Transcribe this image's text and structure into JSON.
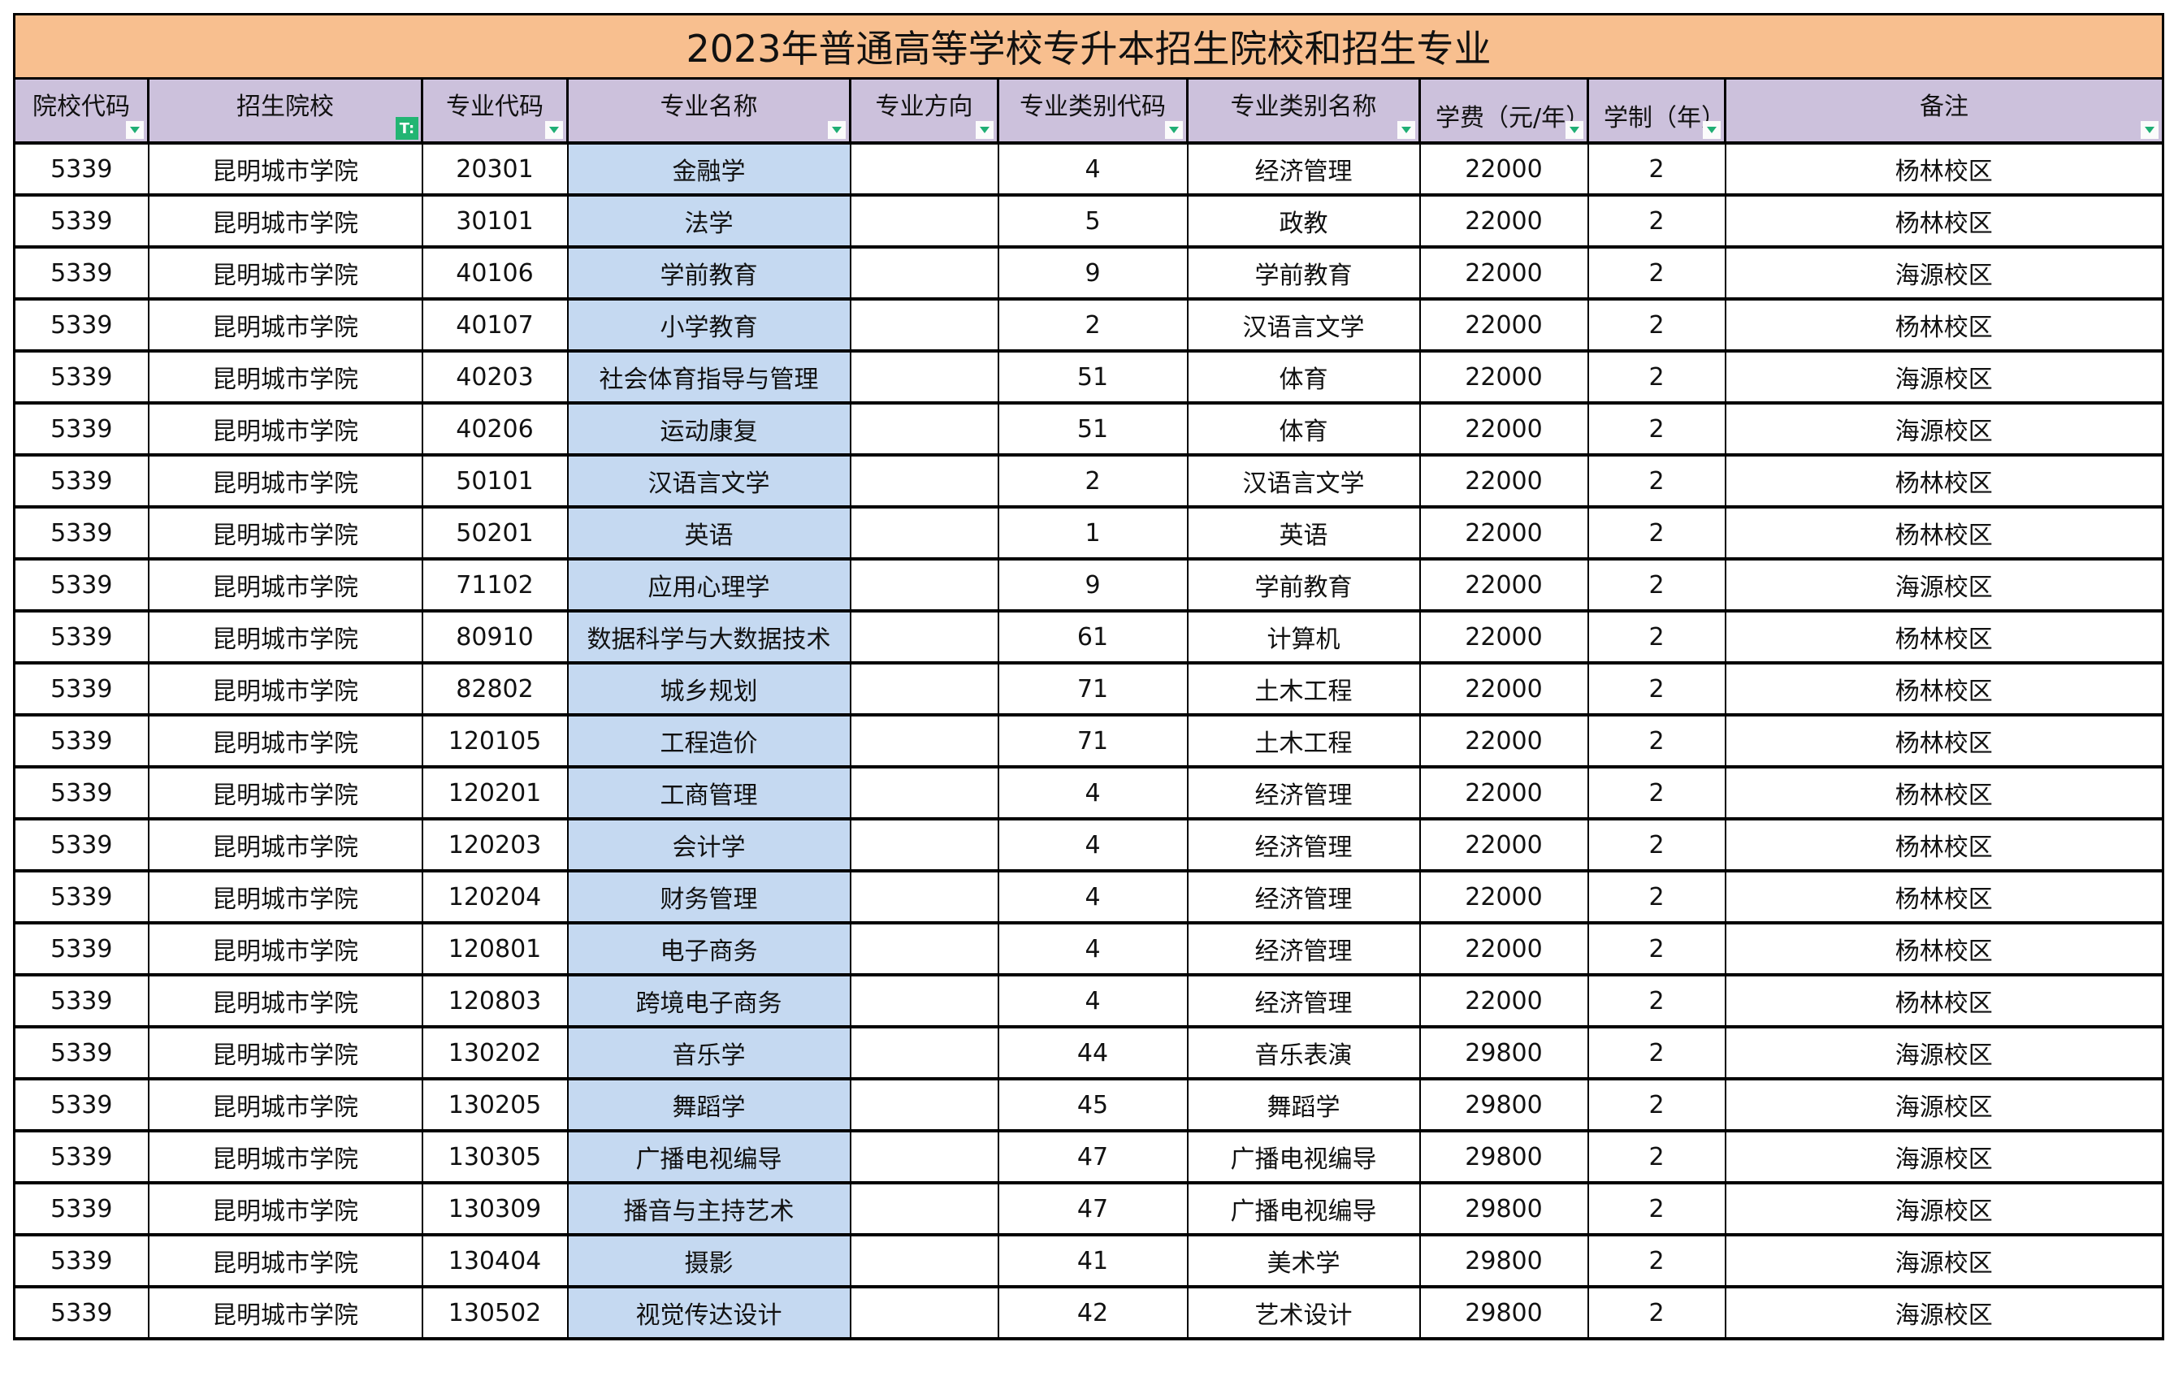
{
  "title": "2023年普通高等学校专升本招生院校和招生专业",
  "columns": [
    {
      "key": "school_code",
      "label": "院校代码",
      "filter": "dropdown"
    },
    {
      "key": "school_name",
      "label": "招生院校",
      "filter": "active"
    },
    {
      "key": "major_code",
      "label": "专业代码",
      "filter": "dropdown"
    },
    {
      "key": "major_name",
      "label": "专业名称",
      "filter": "dropdown"
    },
    {
      "key": "major_direction",
      "label": "专业方向",
      "filter": "dropdown"
    },
    {
      "key": "category_code",
      "label": "专业类别代码",
      "filter": "dropdown"
    },
    {
      "key": "category_name",
      "label": "专业类别名称",
      "filter": "dropdown"
    },
    {
      "key": "tuition",
      "label": "学费（元/年）",
      "filter": "dropdown"
    },
    {
      "key": "duration",
      "label": "学制（年）",
      "filter": "dropdown"
    },
    {
      "key": "note",
      "label": "备注",
      "filter": "dropdown"
    }
  ],
  "colors": {
    "title_bg": "#f8bf8f",
    "header_bg": "#ccc1dc",
    "major_col_bg": "#c5d9f1",
    "filter_active": "#22b573",
    "filter_arrow": "#1fae74"
  },
  "icons": {
    "filter_active": "T:",
    "filter_dropdown": "▼"
  },
  "rows": [
    {
      "school_code": "5339",
      "school_name": "昆明城市学院",
      "major_code": "20301",
      "major_name": "金融学",
      "major_direction": "",
      "category_code": "4",
      "category_name": "经济管理",
      "tuition": "22000",
      "duration": "2",
      "note": "杨林校区"
    },
    {
      "school_code": "5339",
      "school_name": "昆明城市学院",
      "major_code": "30101",
      "major_name": "法学",
      "major_direction": "",
      "category_code": "5",
      "category_name": "政教",
      "tuition": "22000",
      "duration": "2",
      "note": "杨林校区"
    },
    {
      "school_code": "5339",
      "school_name": "昆明城市学院",
      "major_code": "40106",
      "major_name": "学前教育",
      "major_direction": "",
      "category_code": "9",
      "category_name": "学前教育",
      "tuition": "22000",
      "duration": "2",
      "note": "海源校区"
    },
    {
      "school_code": "5339",
      "school_name": "昆明城市学院",
      "major_code": "40107",
      "major_name": "小学教育",
      "major_direction": "",
      "category_code": "2",
      "category_name": "汉语言文学",
      "tuition": "22000",
      "duration": "2",
      "note": "杨林校区"
    },
    {
      "school_code": "5339",
      "school_name": "昆明城市学院",
      "major_code": "40203",
      "major_name": "社会体育指导与管理",
      "major_direction": "",
      "category_code": "51",
      "category_name": "体育",
      "tuition": "22000",
      "duration": "2",
      "note": "海源校区"
    },
    {
      "school_code": "5339",
      "school_name": "昆明城市学院",
      "major_code": "40206",
      "major_name": "运动康复",
      "major_direction": "",
      "category_code": "51",
      "category_name": "体育",
      "tuition": "22000",
      "duration": "2",
      "note": "海源校区"
    },
    {
      "school_code": "5339",
      "school_name": "昆明城市学院",
      "major_code": "50101",
      "major_name": "汉语言文学",
      "major_direction": "",
      "category_code": "2",
      "category_name": "汉语言文学",
      "tuition": "22000",
      "duration": "2",
      "note": "杨林校区"
    },
    {
      "school_code": "5339",
      "school_name": "昆明城市学院",
      "major_code": "50201",
      "major_name": "英语",
      "major_direction": "",
      "category_code": "1",
      "category_name": "英语",
      "tuition": "22000",
      "duration": "2",
      "note": "杨林校区"
    },
    {
      "school_code": "5339",
      "school_name": "昆明城市学院",
      "major_code": "71102",
      "major_name": "应用心理学",
      "major_direction": "",
      "category_code": "9",
      "category_name": "学前教育",
      "tuition": "22000",
      "duration": "2",
      "note": "海源校区"
    },
    {
      "school_code": "5339",
      "school_name": "昆明城市学院",
      "major_code": "80910",
      "major_name": "数据科学与大数据技术",
      "major_direction": "",
      "category_code": "61",
      "category_name": "计算机",
      "tuition": "22000",
      "duration": "2",
      "note": "杨林校区"
    },
    {
      "school_code": "5339",
      "school_name": "昆明城市学院",
      "major_code": "82802",
      "major_name": "城乡规划",
      "major_direction": "",
      "category_code": "71",
      "category_name": "土木工程",
      "tuition": "22000",
      "duration": "2",
      "note": "杨林校区"
    },
    {
      "school_code": "5339",
      "school_name": "昆明城市学院",
      "major_code": "120105",
      "major_name": "工程造价",
      "major_direction": "",
      "category_code": "71",
      "category_name": "土木工程",
      "tuition": "22000",
      "duration": "2",
      "note": "杨林校区"
    },
    {
      "school_code": "5339",
      "school_name": "昆明城市学院",
      "major_code": "120201",
      "major_name": "工商管理",
      "major_direction": "",
      "category_code": "4",
      "category_name": "经济管理",
      "tuition": "22000",
      "duration": "2",
      "note": "杨林校区"
    },
    {
      "school_code": "5339",
      "school_name": "昆明城市学院",
      "major_code": "120203",
      "major_name": "会计学",
      "major_direction": "",
      "category_code": "4",
      "category_name": "经济管理",
      "tuition": "22000",
      "duration": "2",
      "note": "杨林校区"
    },
    {
      "school_code": "5339",
      "school_name": "昆明城市学院",
      "major_code": "120204",
      "major_name": "财务管理",
      "major_direction": "",
      "category_code": "4",
      "category_name": "经济管理",
      "tuition": "22000",
      "duration": "2",
      "note": "杨林校区"
    },
    {
      "school_code": "5339",
      "school_name": "昆明城市学院",
      "major_code": "120801",
      "major_name": "电子商务",
      "major_direction": "",
      "category_code": "4",
      "category_name": "经济管理",
      "tuition": "22000",
      "duration": "2",
      "note": "杨林校区"
    },
    {
      "school_code": "5339",
      "school_name": "昆明城市学院",
      "major_code": "120803",
      "major_name": "跨境电子商务",
      "major_direction": "",
      "category_code": "4",
      "category_name": "经济管理",
      "tuition": "22000",
      "duration": "2",
      "note": "杨林校区"
    },
    {
      "school_code": "5339",
      "school_name": "昆明城市学院",
      "major_code": "130202",
      "major_name": "音乐学",
      "major_direction": "",
      "category_code": "44",
      "category_name": "音乐表演",
      "tuition": "29800",
      "duration": "2",
      "note": "海源校区"
    },
    {
      "school_code": "5339",
      "school_name": "昆明城市学院",
      "major_code": "130205",
      "major_name": "舞蹈学",
      "major_direction": "",
      "category_code": "45",
      "category_name": "舞蹈学",
      "tuition": "29800",
      "duration": "2",
      "note": "海源校区"
    },
    {
      "school_code": "5339",
      "school_name": "昆明城市学院",
      "major_code": "130305",
      "major_name": "广播电视编导",
      "major_direction": "",
      "category_code": "47",
      "category_name": "广播电视编导",
      "tuition": "29800",
      "duration": "2",
      "note": "海源校区"
    },
    {
      "school_code": "5339",
      "school_name": "昆明城市学院",
      "major_code": "130309",
      "major_name": "播音与主持艺术",
      "major_direction": "",
      "category_code": "47",
      "category_name": "广播电视编导",
      "tuition": "29800",
      "duration": "2",
      "note": "海源校区"
    },
    {
      "school_code": "5339",
      "school_name": "昆明城市学院",
      "major_code": "130404",
      "major_name": "摄影",
      "major_direction": "",
      "category_code": "41",
      "category_name": "美术学",
      "tuition": "29800",
      "duration": "2",
      "note": "海源校区"
    },
    {
      "school_code": "5339",
      "school_name": "昆明城市学院",
      "major_code": "130502",
      "major_name": "视觉传达设计",
      "major_direction": "",
      "category_code": "42",
      "category_name": "艺术设计",
      "tuition": "29800",
      "duration": "2",
      "note": "海源校区"
    }
  ]
}
